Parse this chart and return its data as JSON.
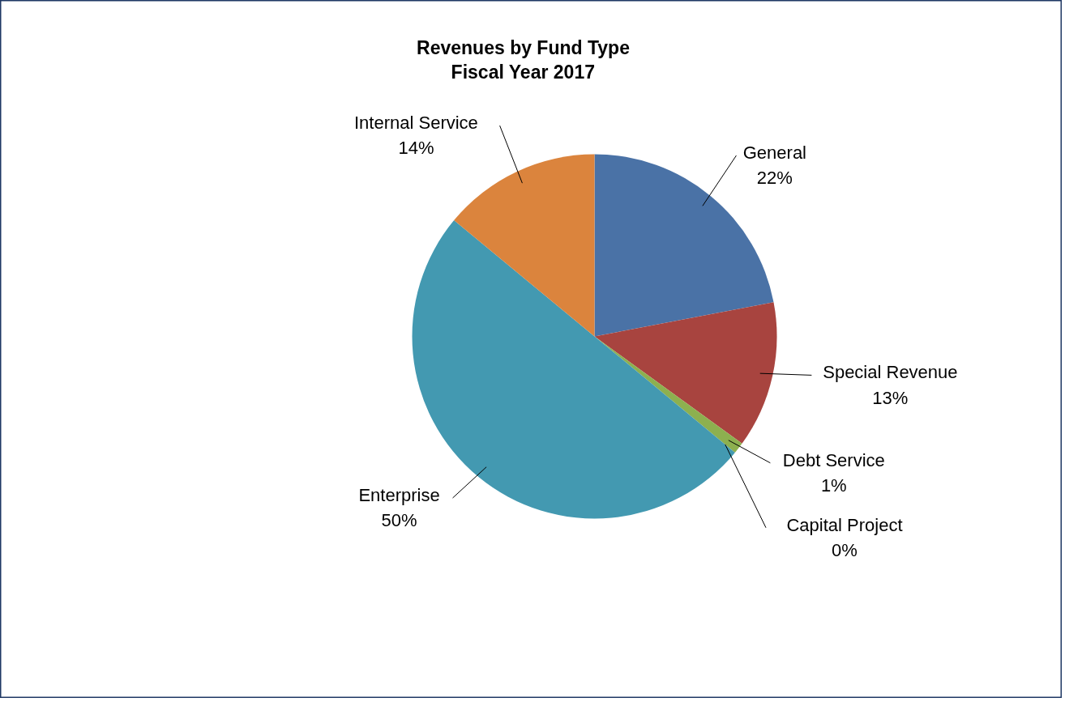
{
  "chart_data": {
    "type": "pie",
    "title": "Revenues by Fund Type",
    "subtitle": "Fiscal Year 2017",
    "categories": [
      "General",
      "Special Revenue",
      "Debt Service",
      "Capital Project",
      "Enterprise",
      "Internal Service"
    ],
    "values": [
      22,
      13,
      1,
      0,
      50,
      14
    ],
    "value_labels": [
      "22%",
      "13%",
      "1%",
      "0%",
      "50%",
      "14%"
    ],
    "colors": [
      "#4a72a6",
      "#a8443f",
      "#8db04f",
      "#7a5c96",
      "#4399b1",
      "#db843d"
    ],
    "data_labels": true
  }
}
